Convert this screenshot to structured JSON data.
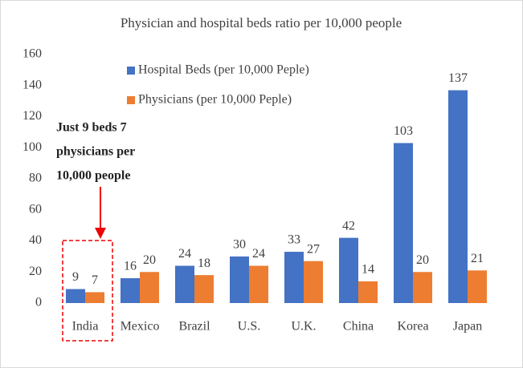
{
  "chart_data": {
    "type": "bar",
    "title": "Physician and hospital beds ratio per 10,000 people",
    "categories": [
      "India",
      "Mexico",
      "Brazil",
      "U.S.",
      "U.K.",
      "China",
      "Korea",
      "Japan"
    ],
    "series": [
      {
        "name": "Hospital Beds (per 10,000 Peple)",
        "color": "#4472c4",
        "values": [
          9,
          16,
          24,
          30,
          33,
          42,
          103,
          137
        ]
      },
      {
        "name": "Physicians (per 10,000 Peple)",
        "color": "#ed7d31",
        "values": [
          7,
          20,
          18,
          24,
          27,
          14,
          20,
          21
        ]
      }
    ],
    "ylim": [
      0,
      160
    ],
    "yticks": [
      0,
      20,
      40,
      60,
      80,
      100,
      120,
      140,
      160
    ],
    "grid": false,
    "legend": "top-left",
    "annotation": [
      "Just 9 beds 7",
      "physicians per",
      "10,000  people"
    ]
  }
}
